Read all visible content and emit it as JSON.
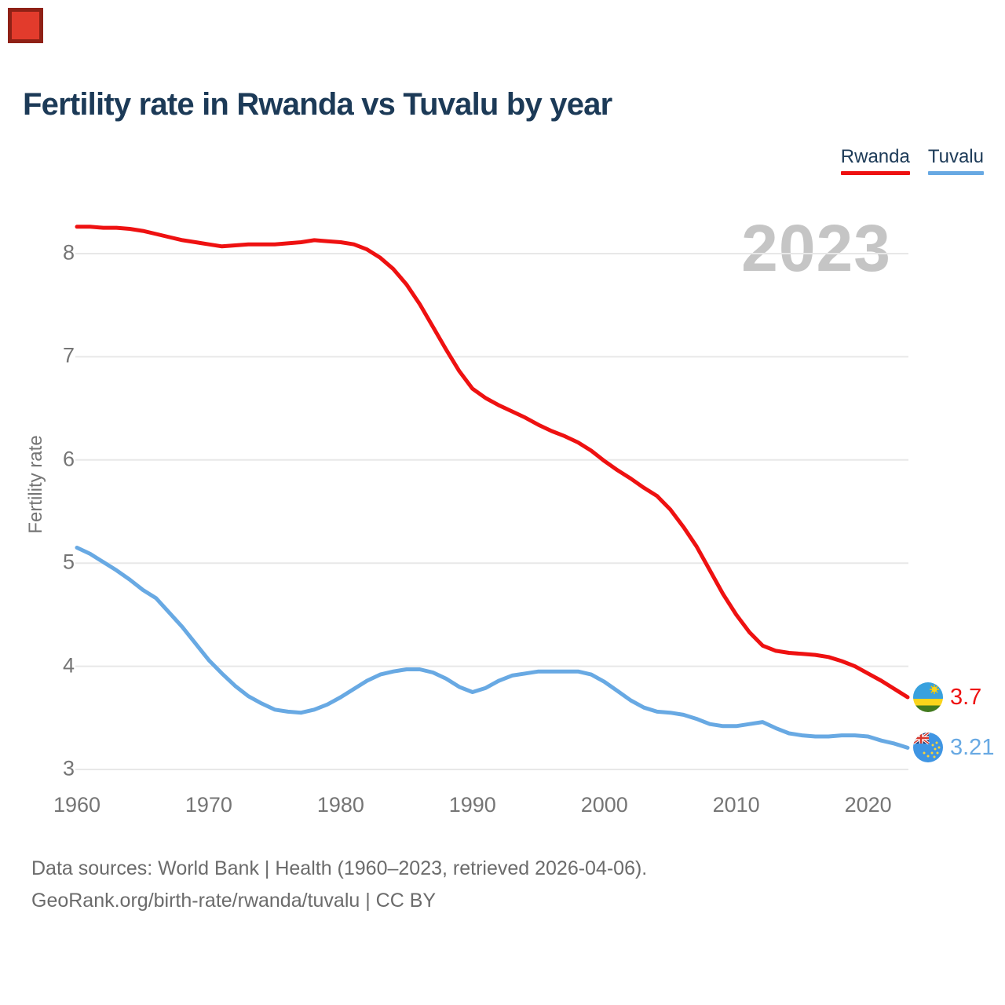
{
  "marker": {
    "fill": "#e23b2c",
    "border": "#8f2116"
  },
  "title": "Fertility rate in Rwanda vs Tuvalu by year",
  "legend": {
    "items": [
      {
        "label": "Rwanda",
        "color": "#ee1111"
      },
      {
        "label": "Tuvalu",
        "color": "#68a9e3"
      }
    ]
  },
  "watermark": "2023",
  "y_axis": {
    "title": "Fertility rate",
    "ticks": [
      "8",
      "7",
      "6",
      "5",
      "4",
      "3"
    ]
  },
  "x_axis": {
    "ticks": [
      "1960",
      "1970",
      "1980",
      "1990",
      "2000",
      "2010",
      "2020"
    ]
  },
  "end_labels": [
    {
      "series": "Rwanda",
      "value": "3.7",
      "color": "#ee1111",
      "flag": "rwanda-flag-icon"
    },
    {
      "series": "Tuvalu",
      "value": "3.21",
      "color": "#68a9e3",
      "flag": "tuvalu-flag-icon"
    }
  ],
  "footer": {
    "line1": "Data sources: World Bank | Health (1960–2023, retrieved 2026-04-06).",
    "line2": "GeoRank.org/birth-rate/rwanda/tuvalu | CC BY"
  },
  "chart_data": {
    "type": "line",
    "title": "Fertility rate in Rwanda vs Tuvalu by year",
    "xlabel": "",
    "ylabel": "Fertility rate",
    "xlim": [
      1960,
      2023
    ],
    "ylim": [
      3,
      8.4
    ],
    "yticks": [
      3,
      4,
      5,
      6,
      7,
      8
    ],
    "grid": "horizontal",
    "legend_position": "top-right",
    "x": [
      1960,
      1961,
      1962,
      1963,
      1964,
      1965,
      1966,
      1967,
      1968,
      1969,
      1970,
      1971,
      1972,
      1973,
      1974,
      1975,
      1976,
      1977,
      1978,
      1979,
      1980,
      1981,
      1982,
      1983,
      1984,
      1985,
      1986,
      1987,
      1988,
      1989,
      1990,
      1991,
      1992,
      1993,
      1994,
      1995,
      1996,
      1997,
      1998,
      1999,
      2000,
      2001,
      2002,
      2003,
      2004,
      2005,
      2006,
      2007,
      2008,
      2009,
      2010,
      2011,
      2012,
      2013,
      2014,
      2015,
      2016,
      2017,
      2018,
      2019,
      2020,
      2021,
      2022,
      2023
    ],
    "series": [
      {
        "name": "Rwanda",
        "color": "#ee1111",
        "values": [
          8.26,
          8.26,
          8.25,
          8.25,
          8.24,
          8.22,
          8.19,
          8.16,
          8.13,
          8.11,
          8.09,
          8.07,
          8.08,
          8.09,
          8.09,
          8.09,
          8.1,
          8.11,
          8.13,
          8.12,
          8.11,
          8.09,
          8.04,
          7.96,
          7.85,
          7.7,
          7.51,
          7.29,
          7.07,
          6.86,
          6.69,
          6.6,
          6.53,
          6.47,
          6.41,
          6.34,
          6.28,
          6.23,
          6.17,
          6.09,
          5.99,
          5.9,
          5.82,
          5.73,
          5.65,
          5.52,
          5.35,
          5.16,
          4.93,
          4.7,
          4.5,
          4.33,
          4.2,
          4.15,
          4.13,
          4.12,
          4.11,
          4.09,
          4.05,
          4.0,
          3.93,
          3.86,
          3.78,
          3.7
        ]
      },
      {
        "name": "Tuvalu",
        "color": "#68a9e3",
        "values": [
          5.15,
          5.09,
          5.01,
          4.93,
          4.84,
          4.74,
          4.66,
          4.52,
          4.38,
          4.22,
          4.06,
          3.93,
          3.81,
          3.71,
          3.64,
          3.58,
          3.56,
          3.55,
          3.58,
          3.63,
          3.7,
          3.78,
          3.86,
          3.92,
          3.95,
          3.97,
          3.97,
          3.94,
          3.88,
          3.8,
          3.75,
          3.79,
          3.86,
          3.91,
          3.93,
          3.95,
          3.95,
          3.95,
          3.95,
          3.92,
          3.85,
          3.76,
          3.67,
          3.6,
          3.56,
          3.55,
          3.53,
          3.49,
          3.44,
          3.42,
          3.42,
          3.44,
          3.46,
          3.4,
          3.35,
          3.33,
          3.32,
          3.32,
          3.33,
          3.33,
          3.32,
          3.28,
          3.25,
          3.21
        ]
      }
    ]
  }
}
